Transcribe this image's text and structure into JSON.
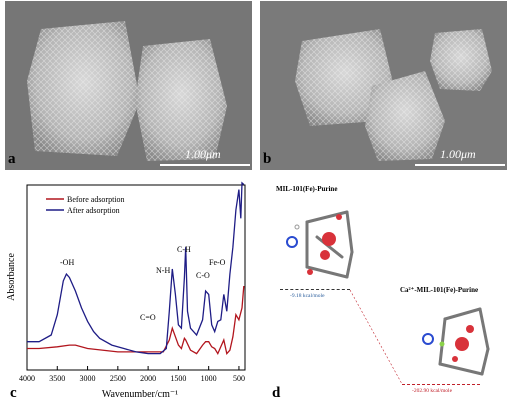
{
  "panels": {
    "a": {
      "letter": "a",
      "scale": "1.00μm"
    },
    "b": {
      "letter": "b",
      "scale": "1.00μm"
    },
    "c": {
      "letter": "c"
    },
    "d": {
      "letter": "d"
    }
  },
  "ftir": {
    "ylabel": "Absorbance",
    "xlabel": "Wavenumber/cm⁻¹",
    "xticks": [
      "4000",
      "3500",
      "3000",
      "2500",
      "2000",
      "1500",
      "1000",
      "500"
    ],
    "legend": [
      {
        "label": "Before adsorption",
        "color": "#b2161e"
      },
      {
        "label": "After adsorption",
        "color": "#1f1d86"
      }
    ],
    "annotations": [
      "-OH",
      "C=O",
      "N-H",
      "C-H",
      "C-O",
      "Fe-O"
    ]
  },
  "chart_data": {
    "type": "line",
    "title": "",
    "xlabel": "Wavenumber/cm⁻¹",
    "ylabel": "Absorbance",
    "xlim": [
      4000,
      400
    ],
    "series": [
      {
        "name": "Before adsorption",
        "x": [
          4000,
          3800,
          3500,
          3300,
          3200,
          3000,
          2500,
          2000,
          1750,
          1650,
          1600,
          1500,
          1450,
          1400,
          1380,
          1300,
          1200,
          1100,
          1050,
          1000,
          950,
          900,
          850,
          800,
          750,
          700,
          650,
          600,
          550,
          500,
          450,
          420
        ],
        "y": [
          0.08,
          0.08,
          0.09,
          0.1,
          0.1,
          0.08,
          0.06,
          0.06,
          0.06,
          0.13,
          0.2,
          0.1,
          0.08,
          0.14,
          0.13,
          0.07,
          0.05,
          0.1,
          0.12,
          0.12,
          0.09,
          0.08,
          0.05,
          0.09,
          0.13,
          0.05,
          0.07,
          0.15,
          0.28,
          0.25,
          0.32,
          0.45
        ]
      },
      {
        "name": "After adsorption",
        "x": [
          4000,
          3800,
          3600,
          3500,
          3400,
          3350,
          3300,
          3200,
          3100,
          3000,
          2900,
          2800,
          2600,
          2400,
          2200,
          2000,
          1800,
          1700,
          1650,
          1600,
          1550,
          1500,
          1450,
          1400,
          1380,
          1350,
          1300,
          1200,
          1100,
          1050,
          1000,
          950,
          900,
          850,
          800,
          750,
          700,
          650,
          600,
          550,
          500,
          470,
          450,
          420
        ],
        "y": [
          0.12,
          0.12,
          0.16,
          0.28,
          0.48,
          0.52,
          0.5,
          0.42,
          0.32,
          0.24,
          0.18,
          0.14,
          0.1,
          0.08,
          0.06,
          0.05,
          0.05,
          0.08,
          0.3,
          0.55,
          0.4,
          0.22,
          0.2,
          0.5,
          0.68,
          0.3,
          0.2,
          0.16,
          0.25,
          0.42,
          0.4,
          0.22,
          0.18,
          0.24,
          0.25,
          0.4,
          0.3,
          0.52,
          0.68,
          0.9,
          1.02,
          0.85,
          1.06,
          1.05
        ]
      }
    ],
    "annotations": [
      "-OH",
      "C=O",
      "N-H",
      "C-H",
      "C-O",
      "Fe-O"
    ],
    "legend": "top-left"
  },
  "models": {
    "top_title": "MIL-101(Fe)-Purine",
    "bottom_title": "Ca²⁺-MIL-101(Fe)-Purine",
    "energy_top": "-9.18 kcal/mole",
    "energy_bottom": "-202.90 kcal/mole",
    "energy_top_color": "#2a5d9c",
    "energy_bottom_color": "#c0202a"
  }
}
